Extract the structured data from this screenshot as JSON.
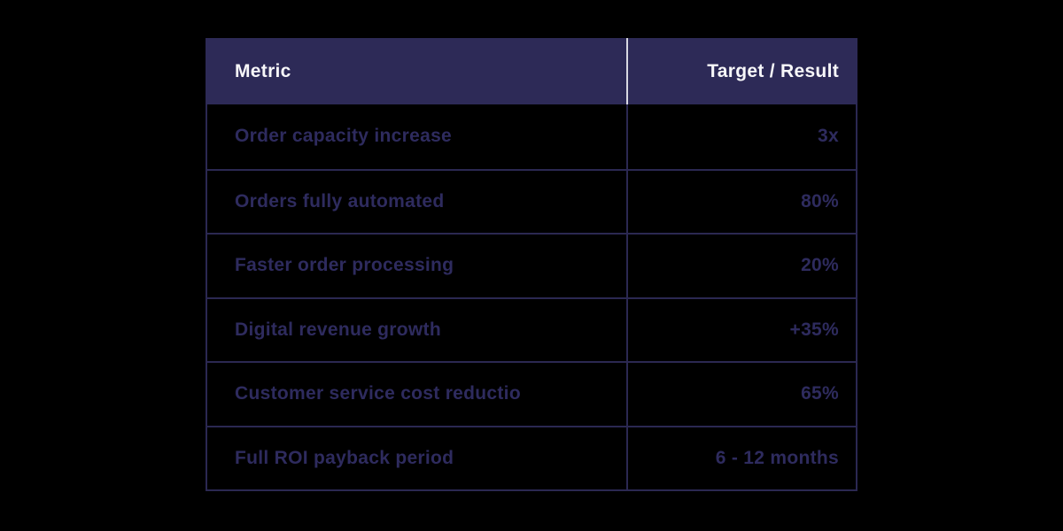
{
  "table": {
    "header": {
      "metric_label": "Metric",
      "value_label": "Target / Result"
    },
    "rows": [
      {
        "metric": "Order capacity increase",
        "value": "3x"
      },
      {
        "metric": "Orders fully automated",
        "value": "80%"
      },
      {
        "metric": "Faster order processing",
        "value": "20%"
      },
      {
        "metric": "Digital revenue growth",
        "value": "+35%"
      },
      {
        "metric": "Customer service cost reductio",
        "value": "65%"
      },
      {
        "metric": "Full ROI payback period",
        "value": "6 - 12 months"
      }
    ],
    "colors": {
      "page_background": "#000000",
      "header_background": "#2d2a57",
      "header_text": "#f7f7f9",
      "header_divider": "#d8d8e2",
      "body_background": "#000000",
      "body_text": "#2e2b5e",
      "border": "#2b2852"
    }
  },
  "chart_data": {
    "type": "table",
    "columns": [
      "Metric",
      "Target / Result"
    ],
    "rows": [
      [
        "Order capacity increase",
        "3x"
      ],
      [
        "Orders fully automated",
        "80%"
      ],
      [
        "Faster order processing",
        "20%"
      ],
      [
        "Digital revenue growth",
        "+35%"
      ],
      [
        "Customer service cost reductio",
        "65%"
      ],
      [
        "Full ROI payback period",
        "6 - 12 months"
      ]
    ],
    "title": "",
    "legend_position": "none",
    "grid": true
  }
}
